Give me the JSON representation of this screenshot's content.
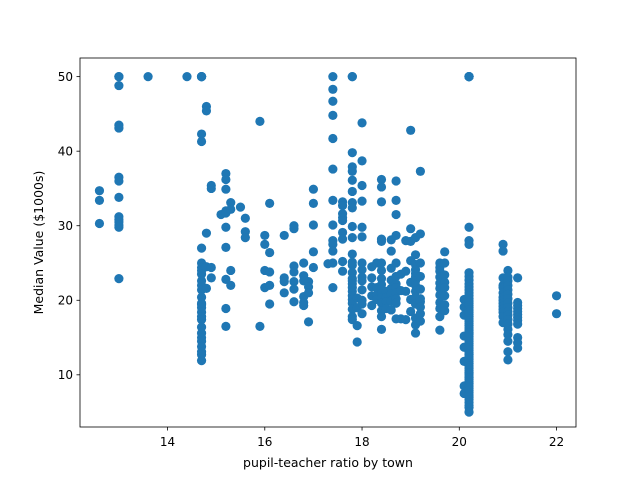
{
  "chart_data": {
    "type": "scatter",
    "title": "",
    "xlabel": "pupil-teacher ratio by town",
    "ylabel": "Median Value ($1000s)",
    "xlim": [
      12.2,
      22.4
    ],
    "ylim": [
      3.0,
      52.5
    ],
    "xticks": [
      14,
      16,
      18,
      20,
      22
    ],
    "yticks": [
      10,
      20,
      30,
      40,
      50
    ],
    "grid": false,
    "legend": "none",
    "color": "#1f77b4",
    "series": [
      {
        "x": [
          12.6,
          12.6,
          12.6,
          13.0,
          13.0,
          13.0,
          13.0,
          13.0,
          13.0,
          13.0,
          13.0,
          13.0,
          13.0,
          13.0,
          13.0,
          13.0,
          13.0,
          13.6,
          14.4,
          14.7,
          14.7,
          14.7,
          14.7,
          14.7,
          14.7,
          14.7,
          14.7,
          14.7,
          14.7,
          14.7,
          14.7,
          14.7,
          14.7,
          14.7,
          14.7,
          14.7,
          14.7,
          14.7,
          14.7,
          14.7,
          14.7,
          14.7,
          14.7,
          14.7,
          14.7,
          14.7,
          14.7,
          14.7,
          14.8,
          14.8,
          14.8,
          14.8,
          14.8,
          14.9,
          14.9,
          14.9,
          14.9,
          15.1,
          15.2,
          15.2,
          15.2,
          15.2,
          15.2,
          15.2,
          15.2,
          15.2,
          15.2,
          15.2,
          15.3,
          15.3,
          15.3,
          15.3,
          15.5,
          15.6,
          15.6,
          15.6,
          15.9,
          15.9,
          16.0,
          16.0,
          16.0,
          16.0,
          16.1,
          16.1,
          16.1,
          16.1,
          16.1,
          16.4,
          16.4,
          16.4,
          16.4,
          16.6,
          16.6,
          16.6,
          16.6,
          16.6,
          16.6,
          16.6,
          16.8,
          16.8,
          16.8,
          16.8,
          16.8,
          16.8,
          16.9,
          16.9,
          16.9,
          16.9,
          17.0,
          17.0,
          17.0,
          17.0,
          17.0,
          17.3,
          17.4,
          17.4,
          17.4,
          17.4,
          17.4,
          17.4,
          17.4,
          17.4,
          17.4,
          17.4,
          17.4,
          17.4,
          17.4,
          17.6,
          17.6,
          17.6,
          17.6,
          17.6,
          17.6,
          17.6,
          17.6,
          17.6,
          17.8,
          17.8,
          17.8,
          17.8,
          17.8,
          17.8,
          17.8,
          17.8,
          17.8,
          17.8,
          17.8,
          17.8,
          17.8,
          17.8,
          17.8,
          17.8,
          17.8,
          17.8,
          17.8,
          17.8,
          17.8,
          17.8,
          17.8,
          17.8,
          17.8,
          17.8,
          17.9,
          17.9,
          17.9,
          17.9,
          18.0,
          18.0,
          18.0,
          18.0,
          18.0,
          18.0,
          18.0,
          18.0,
          18.0,
          18.0,
          18.0,
          18.0,
          18.0,
          18.0,
          18.2,
          18.2,
          18.2,
          18.2,
          18.2,
          18.3,
          18.3,
          18.3,
          18.3,
          18.4,
          18.4,
          18.4,
          18.4,
          18.4,
          18.4,
          18.4,
          18.4,
          18.4,
          18.4,
          18.4,
          18.4,
          18.4,
          18.4,
          18.4,
          18.4,
          18.5,
          18.5,
          18.5,
          18.5,
          18.6,
          18.6,
          18.6,
          18.6,
          18.6,
          18.6,
          18.6,
          18.6,
          18.7,
          18.7,
          18.7,
          18.7,
          18.7,
          18.7,
          18.7,
          18.7,
          18.7,
          18.7,
          18.7,
          18.7,
          18.8,
          18.8,
          18.8,
          18.9,
          18.9,
          18.9,
          18.9,
          19.0,
          19.0,
          19.0,
          19.0,
          19.0,
          19.0,
          19.0,
          19.1,
          19.1,
          19.1,
          19.1,
          19.1,
          19.1,
          19.1,
          19.1,
          19.1,
          19.1,
          19.1,
          19.1,
          19.1,
          19.1,
          19.2,
          19.2,
          19.2,
          19.2,
          19.2,
          19.2,
          19.2,
          19.2,
          19.2,
          19.2,
          19.6,
          19.6,
          19.6,
          19.6,
          19.6,
          19.6,
          19.6,
          19.6,
          19.6,
          19.6,
          19.6,
          19.7,
          19.7,
          19.7,
          19.7,
          19.7,
          19.7,
          19.7,
          19.7,
          20.1,
          20.1,
          20.1,
          20.1,
          20.1,
          20.1,
          20.1,
          20.1,
          20.2,
          20.2,
          20.2,
          20.2,
          20.2,
          20.2,
          20.2,
          20.2,
          20.2,
          20.2,
          20.2,
          20.2,
          20.2,
          20.2,
          20.2,
          20.2,
          20.2,
          20.2,
          20.2,
          20.2,
          20.2,
          20.2,
          20.2,
          20.2,
          20.2,
          20.2,
          20.2,
          20.2,
          20.2,
          20.2,
          20.2,
          20.2,
          20.2,
          20.2,
          20.2,
          20.2,
          20.2,
          20.2,
          20.2,
          20.2,
          20.2,
          20.2,
          20.2,
          20.2,
          20.2,
          20.2,
          20.2,
          20.2,
          20.2,
          20.2,
          20.2,
          20.2,
          20.2,
          20.2,
          20.2,
          20.2,
          20.2,
          20.2,
          20.2,
          20.2,
          20.2,
          20.2,
          20.2,
          20.2,
          20.2,
          20.2,
          20.2,
          20.2,
          20.2,
          20.2,
          20.9,
          20.9,
          20.9,
          20.9,
          20.9,
          20.9,
          20.9,
          20.9,
          20.9,
          20.9,
          20.9,
          20.9,
          20.9,
          20.9,
          21.0,
          21.0,
          21.0,
          21.0,
          21.0,
          21.0,
          21.0,
          21.0,
          21.0,
          21.0,
          21.0,
          21.0,
          21.0,
          21.0,
          21.0,
          21.0,
          21.0,
          21.0,
          21.2,
          21.2,
          21.2,
          21.2,
          21.2,
          21.2,
          21.2,
          21.2,
          21.2,
          21.2,
          21.2,
          21.2,
          22.0,
          22.0
        ],
        "y": [
          34.7,
          33.4,
          30.3,
          50.0,
          50.0,
          48.8,
          43.5,
          43.1,
          36.5,
          36.0,
          33.8,
          31.2,
          30.8,
          30.5,
          30.1,
          29.8,
          22.9,
          50.0,
          50.0,
          50.0,
          50.0,
          50.0,
          50.0,
          42.3,
          41.3,
          27.0,
          25.0,
          24.4,
          24.0,
          23.5,
          22.6,
          22.0,
          21.4,
          20.4,
          19.6,
          19.4,
          19.0,
          18.4,
          17.8,
          17.4,
          16.4,
          15.6,
          15.0,
          14.5,
          13.8,
          13.1,
          12.7,
          11.9,
          46.0,
          45.4,
          29.0,
          24.5,
          21.6,
          35.4,
          35.0,
          24.4,
          23.0,
          31.5,
          37.0,
          36.2,
          34.9,
          32.0,
          31.7,
          29.8,
          27.1,
          22.8,
          18.9,
          16.5,
          33.1,
          32.2,
          24.0,
          22.0,
          32.5,
          31.0,
          29.2,
          28.4,
          44.0,
          16.5,
          28.7,
          27.5,
          24.0,
          21.7,
          33.0,
          26.4,
          23.8,
          22.0,
          19.5,
          28.7,
          23.0,
          22.5,
          21.0,
          30.0,
          29.6,
          24.6,
          23.8,
          22.5,
          21.5,
          19.8,
          25.0,
          23.3,
          22.6,
          20.5,
          19.7,
          19.3,
          22.5,
          21.8,
          21.0,
          17.1,
          34.9,
          33.0,
          30.1,
          26.5,
          24.4,
          24.9,
          50.0,
          48.3,
          46.7,
          44.8,
          41.7,
          37.6,
          33.4,
          30.1,
          28.0,
          27.5,
          26.6,
          25.0,
          21.7,
          33.2,
          32.7,
          31.6,
          31.1,
          30.7,
          29.1,
          28.2,
          25.2,
          23.9,
          50.0,
          50.0,
          39.8,
          37.9,
          37.3,
          36.1,
          34.6,
          33.1,
          32.4,
          29.9,
          28.4,
          26.2,
          25.1,
          24.7,
          23.7,
          22.9,
          22.6,
          22.2,
          21.7,
          21.2,
          20.6,
          20.1,
          19.6,
          18.8,
          17.8,
          17.4,
          20.3,
          19.0,
          16.6,
          14.4,
          43.8,
          38.7,
          35.4,
          33.3,
          29.8,
          28.5,
          25.0,
          24.1,
          23.1,
          22.6,
          21.4,
          20.0,
          19.5,
          18.2,
          24.5,
          23.0,
          21.8,
          20.6,
          19.3,
          25.0,
          21.7,
          20.7,
          20.1,
          36.2,
          35.2,
          33.2,
          28.2,
          27.9,
          25.0,
          24.0,
          22.9,
          22.1,
          21.5,
          20.9,
          20.3,
          19.6,
          18.6,
          17.8,
          16.1,
          21.2,
          20.4,
          19.8,
          18.9,
          28.1,
          26.6,
          24.3,
          22.7,
          21.6,
          20.9,
          19.9,
          18.7,
          36.0,
          33.4,
          31.5,
          28.7,
          25.0,
          23.2,
          22.2,
          21.7,
          21.0,
          20.2,
          19.6,
          17.5,
          23.5,
          21.3,
          17.5,
          28.0,
          23.9,
          21.2,
          17.4,
          42.8,
          29.6,
          27.9,
          25.3,
          22.4,
          20.1,
          18.5,
          28.4,
          26.1,
          24.8,
          24.1,
          23.6,
          23.1,
          22.6,
          22.0,
          21.2,
          20.4,
          19.5,
          17.6,
          16.7,
          15.6,
          37.3,
          28.9,
          25.0,
          23.2,
          21.5,
          20.2,
          19.8,
          19.1,
          18.2,
          17.2,
          25.0,
          24.4,
          23.9,
          23.1,
          22.3,
          21.6,
          20.7,
          19.7,
          18.9,
          17.8,
          16.0,
          26.5,
          25.0,
          23.4,
          22.4,
          21.7,
          20.6,
          19.4,
          18.6,
          20.1,
          19.1,
          18.0,
          15.2,
          13.7,
          11.8,
          8.5,
          7.5,
          50.0,
          50.0,
          50.0,
          50.0,
          50.0,
          29.8,
          28.0,
          27.5,
          23.7,
          23.2,
          22.7,
          22.2,
          21.8,
          21.4,
          21.0,
          20.6,
          20.2,
          19.9,
          19.6,
          19.3,
          19.0,
          18.7,
          18.4,
          18.1,
          17.8,
          17.5,
          17.2,
          16.9,
          16.6,
          16.3,
          16.0,
          15.7,
          15.4,
          15.1,
          14.8,
          14.5,
          14.2,
          13.9,
          13.6,
          13.3,
          13.0,
          12.7,
          12.4,
          12.1,
          11.8,
          11.5,
          11.2,
          10.9,
          10.6,
          10.3,
          10.0,
          9.7,
          9.4,
          9.1,
          8.8,
          8.5,
          8.2,
          7.9,
          7.6,
          7.3,
          7.0,
          6.7,
          6.3,
          5.9,
          5.6,
          5.0,
          10.2,
          9.6,
          12.8,
          15.6,
          27.5,
          26.6,
          23.0,
          22.0,
          21.7,
          21.0,
          20.4,
          20.0,
          19.6,
          19.2,
          18.8,
          18.4,
          17.8,
          17.0,
          24.0,
          23.1,
          22.6,
          22.0,
          21.4,
          20.8,
          20.2,
          19.6,
          19.0,
          18.5,
          18.0,
          17.4,
          16.8,
          16.1,
          15.4,
          14.5,
          13.1,
          12.0,
          23.0,
          19.7,
          19.3,
          18.9,
          18.5,
          18.1,
          17.7,
          17.3,
          16.8,
          15.0,
          14.3,
          13.6,
          20.6,
          18.2
        ]
      }
    ]
  }
}
